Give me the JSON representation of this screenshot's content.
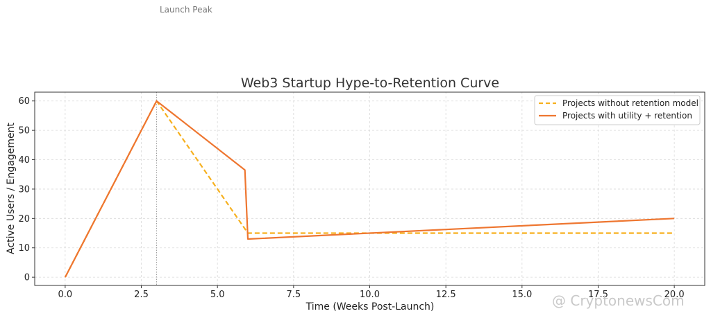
{
  "chart_data": {
    "type": "line",
    "title": "Web3 Startup Hype-to-Retention Curve",
    "xlabel": "Time (Weeks Post-Launch)",
    "ylabel": "Active Users / Engagement",
    "xlim": [
      -1,
      21
    ],
    "ylim": [
      -2.8,
      63
    ],
    "xticks": [
      0.0,
      2.5,
      5.0,
      7.5,
      10.0,
      12.5,
      15.0,
      17.5,
      20.0
    ],
    "xtick_labels": [
      "0.0",
      "2.5",
      "5.0",
      "7.5",
      "10.0",
      "12.5",
      "15.0",
      "17.5",
      "20.0"
    ],
    "yticks": [
      0,
      10,
      20,
      30,
      40,
      50,
      60
    ],
    "ytick_labels": [
      "0",
      "10",
      "20",
      "30",
      "40",
      "50",
      "60"
    ],
    "grid": true,
    "legend_position": "top-right",
    "series": [
      {
        "name": "Projects without retention model",
        "style": "dashed",
        "color": "#F6B01E",
        "points": [
          [
            0,
            0
          ],
          [
            3,
            60
          ],
          [
            6,
            15
          ],
          [
            20,
            15
          ]
        ]
      },
      {
        "name": "Projects with utility + retention",
        "style": "solid",
        "color": "#EE7630",
        "points": [
          [
            0,
            0
          ],
          [
            3,
            60
          ],
          [
            5.9,
            36.5
          ],
          [
            6,
            13
          ],
          [
            20,
            20
          ]
        ]
      }
    ],
    "vline": {
      "x": 3,
      "style": "dotted",
      "color": "#999999"
    },
    "annotations": [
      {
        "text": "Launch Peak"
      }
    ]
  },
  "watermark": {
    "text": "@ CryptonewsCom"
  }
}
